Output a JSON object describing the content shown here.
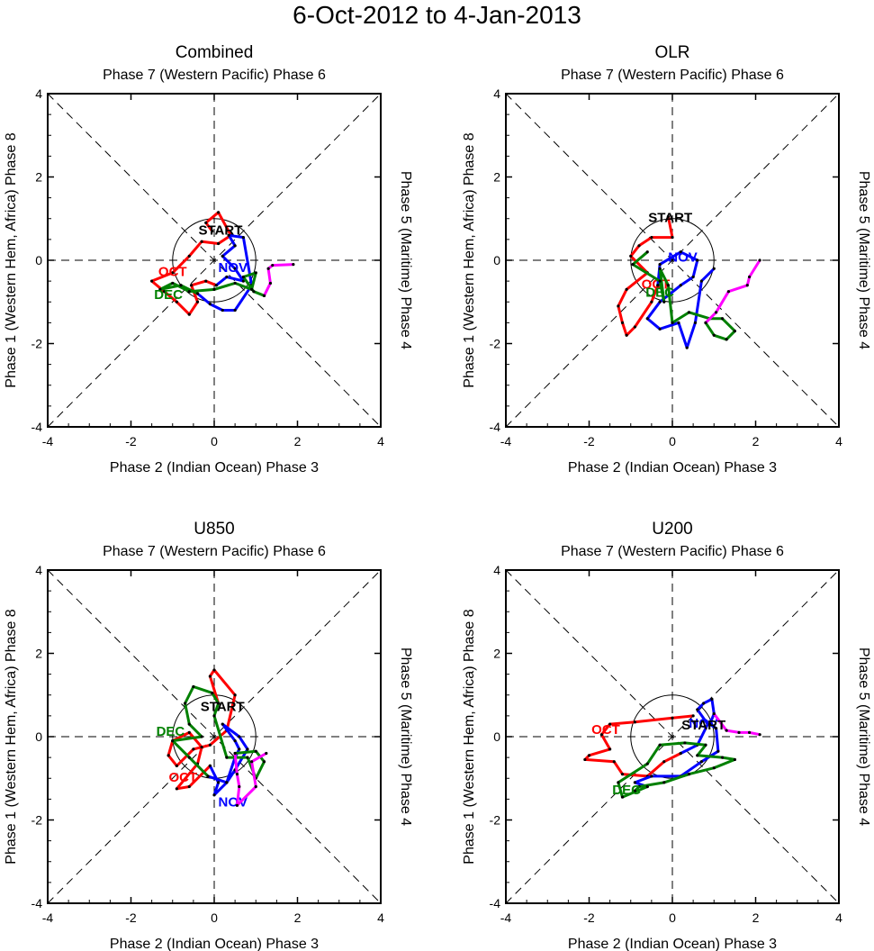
{
  "title": "6-Oct-2012 to 4-Jan-2013",
  "colors": {
    "OCT": "#ff0000",
    "NOV": "#0000ff",
    "DEC": "#008000",
    "JAN": "#ff00ff",
    "axis": "#000000"
  },
  "chart_data": [
    {
      "type": "line",
      "title": "Combined",
      "top_label": "Phase 7 (Western Pacific) Phase 6",
      "xlabel": "Phase 2 (Indian Ocean) Phase 3",
      "ylabel": "Phase 1 (Western Hem, Africa) Phase 8",
      "right_label": "Phase 5 (Maritime) Phase 4",
      "xlim": [
        -4,
        4
      ],
      "ylim": [
        -4,
        4
      ],
      "xticks": [
        "-4",
        "-2",
        "0",
        "2",
        "4"
      ],
      "yticks": [
        "-4",
        "-2",
        "0",
        "2",
        "4"
      ],
      "start_label": "START",
      "start": [
        0.15,
        0.75
      ],
      "series": [
        {
          "name": "OCT",
          "color": "#ff0000",
          "label_at": [
            -1.0,
            -0.25
          ],
          "points": [
            [
              -0.05,
              0.7
            ],
            [
              -0.2,
              0.9
            ],
            [
              0.1,
              1.15
            ],
            [
              0.4,
              0.6
            ],
            [
              0.1,
              0.4
            ],
            [
              -0.3,
              0.45
            ],
            [
              -0.6,
              0.1
            ],
            [
              -1.0,
              -0.3
            ],
            [
              -1.5,
              -0.5
            ],
            [
              -1.2,
              -0.75
            ],
            [
              -0.9,
              -1.0
            ],
            [
              -0.6,
              -1.3
            ],
            [
              -0.4,
              -1.0
            ],
            [
              -0.55,
              -0.6
            ],
            [
              -0.2,
              -0.5
            ],
            [
              0.05,
              -0.6
            ]
          ]
        },
        {
          "name": "NOV",
          "color": "#0000ff",
          "label_at": [
            0.45,
            -0.15
          ],
          "points": [
            [
              0.05,
              -0.6
            ],
            [
              0.3,
              -0.4
            ],
            [
              0.7,
              -0.5
            ],
            [
              0.5,
              -0.2
            ],
            [
              0.2,
              0.1
            ],
            [
              0.5,
              0.35
            ],
            [
              0.35,
              0.6
            ],
            [
              0.7,
              0.55
            ],
            [
              0.9,
              -0.6
            ],
            [
              0.5,
              -1.2
            ],
            [
              0.2,
              -1.2
            ],
            [
              -0.1,
              -1.05
            ],
            [
              -0.4,
              -0.8
            ]
          ]
        },
        {
          "name": "DEC",
          "color": "#008000",
          "label_at": [
            -1.1,
            -0.8
          ],
          "points": [
            [
              -0.4,
              -0.8
            ],
            [
              -0.8,
              -0.6
            ],
            [
              -1.3,
              -0.7
            ],
            [
              -1.0,
              -0.55
            ],
            [
              -0.6,
              -0.75
            ],
            [
              0.0,
              -0.7
            ],
            [
              0.5,
              -0.55
            ],
            [
              0.9,
              -0.7
            ],
            [
              1.0,
              -0.3
            ],
            [
              0.7,
              -0.4
            ],
            [
              0.95,
              -0.75
            ],
            [
              1.2,
              -0.85
            ]
          ]
        },
        {
          "name": "JAN",
          "color": "#ff00ff",
          "label_at": null,
          "points": [
            [
              1.2,
              -0.85
            ],
            [
              1.35,
              -0.55
            ],
            [
              1.3,
              -0.2
            ],
            [
              1.4,
              -0.12
            ],
            [
              1.9,
              -0.1
            ]
          ]
        }
      ]
    },
    {
      "type": "line",
      "title": "OLR",
      "top_label": "Phase 7 (Western Pacific) Phase 6",
      "xlabel": "Phase 2 (Indian Ocean) Phase 3",
      "ylabel": "Phase 1 (Western Hem, Africa) Phase 8",
      "right_label": "Phase 5 (Maritime) Phase 4",
      "xlim": [
        -4,
        4
      ],
      "ylim": [
        -4,
        4
      ],
      "xticks": [
        "-4",
        "-2",
        "0",
        "2",
        "4"
      ],
      "yticks": [
        "-4",
        "-2",
        "0",
        "2",
        "4"
      ],
      "start_label": "START",
      "start": [
        -0.05,
        1.05
      ],
      "series": [
        {
          "name": "OCT",
          "color": "#ff0000",
          "label_at": [
            -0.4,
            -0.55
          ],
          "points": [
            [
              -0.1,
              1.05
            ],
            [
              0.0,
              0.55
            ],
            [
              -0.5,
              0.55
            ],
            [
              -0.8,
              0.35
            ],
            [
              -1.0,
              0.1
            ],
            [
              -0.6,
              -0.3
            ],
            [
              -1.1,
              -0.7
            ],
            [
              -1.3,
              -1.1
            ],
            [
              -1.2,
              -1.5
            ],
            [
              -1.1,
              -1.8
            ],
            [
              -0.9,
              -1.6
            ],
            [
              -0.5,
              -1.0
            ],
            [
              -0.35,
              -0.6
            ]
          ]
        },
        {
          "name": "NOV",
          "color": "#0000ff",
          "label_at": [
            0.25,
            0.1
          ],
          "points": [
            [
              -0.35,
              -0.6
            ],
            [
              -0.3,
              -0.1
            ],
            [
              0.2,
              0.2
            ],
            [
              0.6,
              0.0
            ],
            [
              0.5,
              -0.4
            ],
            [
              0.2,
              -0.6
            ],
            [
              -0.3,
              -1.0
            ],
            [
              -0.6,
              -1.4
            ],
            [
              -0.3,
              -1.65
            ],
            [
              0.15,
              -1.5
            ],
            [
              0.35,
              -2.1
            ],
            [
              0.55,
              -1.5
            ],
            [
              0.7,
              -0.5
            ],
            [
              1.0,
              -0.2
            ]
          ]
        },
        {
          "name": "DEC",
          "color": "#008000",
          "label_at": [
            -0.3,
            -0.75
          ],
          "points": [
            [
              -0.6,
              0.2
            ],
            [
              -0.95,
              -0.1
            ],
            [
              -0.3,
              -0.5
            ],
            [
              -0.2,
              -1.0
            ],
            [
              -0.3,
              -0.2
            ],
            [
              -0.1,
              -0.6
            ],
            [
              0.0,
              -1.5
            ],
            [
              0.4,
              -1.25
            ],
            [
              0.9,
              -1.4
            ],
            [
              1.2,
              -1.4
            ],
            [
              1.5,
              -1.7
            ],
            [
              1.3,
              -1.9
            ],
            [
              1.0,
              -1.8
            ],
            [
              0.8,
              -1.5
            ]
          ]
        },
        {
          "name": "JAN",
          "color": "#ff00ff",
          "label_at": null,
          "points": [
            [
              0.8,
              -1.5
            ],
            [
              1.05,
              -1.25
            ],
            [
              1.35,
              -0.75
            ],
            [
              1.8,
              -0.6
            ],
            [
              1.85,
              -0.4
            ],
            [
              2.1,
              0.0
            ]
          ]
        }
      ]
    },
    {
      "type": "line",
      "title": "U850",
      "top_label": "Phase 7 (Western Pacific) Phase 6",
      "xlabel": "Phase 2 (Indian Ocean) Phase 3",
      "ylabel": "Phase 1 (Western Hem, Africa) Phase 8",
      "right_label": "Phase 5 (Maritime) Phase 4",
      "xlim": [
        -4,
        4
      ],
      "ylim": [
        -4,
        4
      ],
      "xticks": [
        "-4",
        "-2",
        "0",
        "2",
        "4"
      ],
      "yticks": [
        "-4",
        "-2",
        "0",
        "2",
        "4"
      ],
      "start_label": "START",
      "start": [
        0.2,
        0.75
      ],
      "series": [
        {
          "name": "OCT",
          "color": "#ff0000",
          "label_at": [
            -0.75,
            -0.95
          ],
          "points": [
            [
              0.1,
              0.8
            ],
            [
              -0.1,
              1.45
            ],
            [
              0.0,
              1.6
            ],
            [
              0.5,
              1.0
            ],
            [
              0.3,
              0.15
            ],
            [
              -0.1,
              -0.2
            ],
            [
              -0.5,
              -0.3
            ],
            [
              -0.9,
              -0.7
            ],
            [
              -1.1,
              -0.45
            ],
            [
              -1.0,
              -0.1
            ],
            [
              -0.6,
              0.1
            ],
            [
              -0.3,
              -0.25
            ],
            [
              -0.4,
              -0.65
            ],
            [
              -0.9,
              -1.25
            ],
            [
              -0.6,
              -1.2
            ],
            [
              -0.1,
              -0.7
            ]
          ]
        },
        {
          "name": "NOV",
          "color": "#0000ff",
          "label_at": [
            0.45,
            -1.55
          ],
          "points": [
            [
              -0.1,
              -0.7
            ],
            [
              0.1,
              -1.1
            ],
            [
              0.0,
              -1.4
            ],
            [
              0.3,
              -1.1
            ],
            [
              0.5,
              -0.5
            ],
            [
              0.6,
              -0.3
            ],
            [
              0.5,
              -0.1
            ],
            [
              0.2,
              0.3
            ],
            [
              0.6,
              0.0
            ],
            [
              0.8,
              -0.3
            ],
            [
              0.5,
              -0.8
            ],
            [
              0.3,
              -1.1
            ],
            [
              -0.15,
              -0.95
            ]
          ]
        },
        {
          "name": "DEC",
          "color": "#008000",
          "label_at": [
            -1.05,
            0.15
          ],
          "points": [
            [
              -0.15,
              -0.95
            ],
            [
              -0.6,
              -0.5
            ],
            [
              -1.0,
              -0.1
            ],
            [
              -0.3,
              0.0
            ],
            [
              -0.6,
              0.3
            ],
            [
              -0.7,
              0.8
            ],
            [
              -0.5,
              1.2
            ],
            [
              -0.05,
              1.05
            ],
            [
              0.1,
              0.8
            ],
            [
              0.0,
              0.5
            ],
            [
              0.3,
              -0.5
            ],
            [
              0.8,
              -0.5
            ],
            [
              1.0,
              -1.0
            ],
            [
              1.2,
              -0.6
            ],
            [
              1.0,
              -0.35
            ],
            [
              0.5,
              -0.4
            ]
          ]
        },
        {
          "name": "JAN",
          "color": "#ff00ff",
          "label_at": null,
          "points": [
            [
              0.5,
              -0.4
            ],
            [
              0.55,
              -0.9
            ],
            [
              0.6,
              -1.2
            ],
            [
              0.55,
              -1.65
            ],
            [
              1.0,
              -1.2
            ],
            [
              0.9,
              -0.6
            ],
            [
              1.25,
              -0.4
            ]
          ]
        }
      ]
    },
    {
      "type": "line",
      "title": "U200",
      "top_label": "Phase 7 (Western Pacific) Phase 6",
      "xlabel": "Phase 2 (Indian Ocean) Phase 3",
      "ylabel": "Phase 1 (Western Hem, Africa) Phase 8",
      "right_label": "Phase 5 (Maritime) Phase 4",
      "xlim": [
        -4,
        4
      ],
      "ylim": [
        -4,
        4
      ],
      "xticks": [
        "-4",
        "-2",
        "0",
        "2",
        "4"
      ],
      "yticks": [
        "-4",
        "-2",
        "0",
        "2",
        "4"
      ],
      "start_label": "START",
      "start": [
        0.75,
        0.3
      ],
      "series": [
        {
          "name": "OCT",
          "color": "#ff0000",
          "label_at": [
            -1.6,
            0.2
          ],
          "points": [
            [
              0.5,
              0.5
            ],
            [
              0.0,
              0.45
            ],
            [
              -0.9,
              0.35
            ],
            [
              -1.5,
              0.3
            ],
            [
              -1.7,
              0.05
            ],
            [
              -1.5,
              -0.3
            ],
            [
              -2.0,
              -0.45
            ],
            [
              -2.1,
              -0.55
            ],
            [
              -1.4,
              -0.6
            ],
            [
              -1.2,
              -0.9
            ],
            [
              -0.6,
              -0.95
            ],
            [
              -0.2,
              -0.6
            ],
            [
              0.2,
              -0.4
            ]
          ]
        },
        {
          "name": "NOV",
          "color": "#0000ff",
          "label_at": [
            0.75,
            0.35
          ],
          "points": [
            [
              0.2,
              -0.4
            ],
            [
              0.6,
              -0.2
            ],
            [
              0.85,
              0.3
            ],
            [
              0.6,
              0.65
            ],
            [
              0.75,
              0.8
            ],
            [
              0.95,
              0.9
            ],
            [
              1.0,
              0.55
            ],
            [
              0.9,
              0.3
            ],
            [
              1.05,
              0.2
            ],
            [
              1.1,
              -0.35
            ],
            [
              0.7,
              -0.6
            ],
            [
              0.2,
              -0.95
            ],
            [
              -0.5,
              -0.95
            ],
            [
              -0.9,
              -1.1
            ],
            [
              -0.6,
              -1.2
            ]
          ]
        },
        {
          "name": "DEC",
          "color": "#008000",
          "label_at": [
            -1.1,
            -1.25
          ],
          "points": [
            [
              -0.6,
              -1.2
            ],
            [
              -1.2,
              -1.45
            ],
            [
              -1.3,
              -1.1
            ],
            [
              -0.6,
              -0.65
            ],
            [
              -0.3,
              -0.2
            ],
            [
              0.3,
              -0.15
            ],
            [
              0.8,
              -0.2
            ],
            [
              0.6,
              -0.45
            ],
            [
              1.2,
              -0.5
            ],
            [
              1.5,
              -0.55
            ],
            [
              1.0,
              -0.75
            ],
            [
              0.4,
              -0.9
            ],
            [
              -0.2,
              -1.1
            ],
            [
              -0.8,
              -1.2
            ],
            [
              -0.9,
              -1.3
            ]
          ]
        },
        {
          "name": "JAN",
          "color": "#ff00ff",
          "label_at": null,
          "points": [
            [
              1.0,
              0.55
            ],
            [
              1.3,
              0.15
            ],
            [
              1.6,
              0.1
            ],
            [
              1.85,
              0.1
            ],
            [
              2.1,
              0.05
            ]
          ]
        }
      ]
    }
  ]
}
